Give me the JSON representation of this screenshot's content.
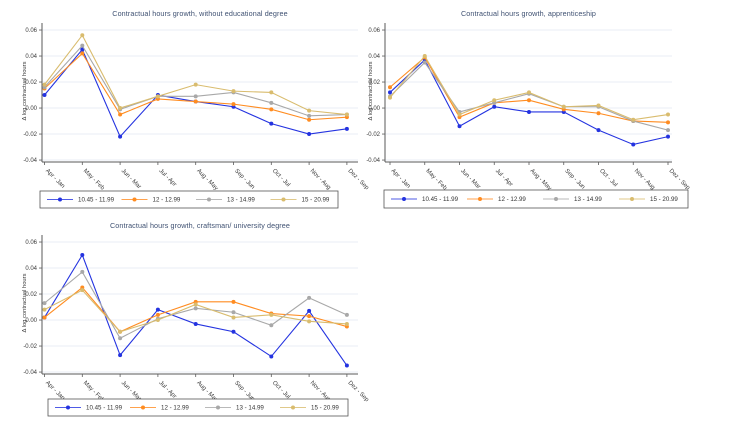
{
  "figure": {
    "background": "#ffffff"
  },
  "colors": {
    "grid": "#e8eef5",
    "axis": "#5a5a5a",
    "title": "#3f5172",
    "tick_label": "#3a3a3a",
    "legend_border": "#555555",
    "legend_background": "#ffffff"
  },
  "chart_data": [
    {
      "type": "line",
      "title": "Contractual hours growth, without educational degree",
      "ylabel": "Δ log contractual hours",
      "xlabel": "",
      "grid": true,
      "legend_position": "bottom",
      "ylim": [
        -0.0415,
        0.0654
      ],
      "yticks": [
        "0.06",
        "0.04",
        "0.02",
        "0.00",
        "-0.02",
        "-0.04"
      ],
      "categories": [
        "Apr - Jan",
        "May - Feb",
        "Jun - Mar",
        "Jul - Apr",
        "Aug - May",
        "Sep - Jun",
        "Oct - Jul",
        "Nov - Aug",
        "Dez - Sep"
      ],
      "series": [
        {
          "name": "10.45 - 11.99",
          "color": "#2433e0",
          "values": [
            0.01,
            0.045,
            -0.022,
            0.01,
            0.005,
            0.001,
            -0.012,
            -0.02,
            -0.016
          ]
        },
        {
          "name": "12 - 12.99",
          "color": "#ff8c21",
          "values": [
            0.015,
            0.042,
            -0.005,
            0.007,
            0.005,
            0.003,
            -0.001,
            -0.009,
            -0.007
          ]
        },
        {
          "name": "13 - 14.99",
          "color": "#a8a8a8",
          "values": [
            0.016,
            0.048,
            -0.001,
            0.009,
            0.009,
            0.012,
            0.004,
            -0.006,
            -0.005
          ]
        },
        {
          "name": "15 - 20.99",
          "color": "#d9bc6e",
          "values": [
            0.018,
            0.056,
            0.0,
            0.009,
            0.018,
            0.013,
            0.012,
            -0.002,
            -0.005
          ]
        }
      ]
    },
    {
      "type": "line",
      "title": "Contractual hours growth, apprenticeship",
      "ylabel": "Δ log contractual hours",
      "xlabel": "",
      "grid": true,
      "legend_position": "bottom",
      "ylim": [
        -0.0415,
        0.0654
      ],
      "yticks": [
        "0.06",
        "0.04",
        "0.02",
        "0.00",
        "-0.02",
        "-0.04"
      ],
      "categories": [
        "Apr - Jan",
        "May - Feb",
        "Jun - Mar",
        "Jul - Apr",
        "Aug - May",
        "Sep - Jun",
        "Oct - Jul",
        "Nov - Aug",
        "Dez - Sep"
      ],
      "series": [
        {
          "name": "10.45 - 11.99",
          "color": "#2433e0",
          "values": [
            0.012,
            0.037,
            -0.014,
            0.001,
            -0.003,
            -0.003,
            -0.017,
            -0.028,
            -0.022
          ]
        },
        {
          "name": "12 - 12.99",
          "color": "#ff8c21",
          "values": [
            0.016,
            0.039,
            -0.007,
            0.004,
            0.006,
            -0.001,
            -0.004,
            -0.01,
            -0.011
          ]
        },
        {
          "name": "13 - 14.99",
          "color": "#a8a8a8",
          "values": [
            0.009,
            0.035,
            -0.003,
            0.004,
            0.011,
            0.001,
            0.001,
            -0.01,
            -0.017
          ]
        },
        {
          "name": "15 - 20.99",
          "color": "#d9bc6e",
          "values": [
            0.008,
            0.04,
            -0.005,
            0.006,
            0.012,
            0.001,
            0.002,
            -0.009,
            -0.005
          ]
        }
      ]
    },
    {
      "type": "line",
      "title": "Contractual hours growth, craftsman/ university degree",
      "ylabel": "Δ log contractual hours",
      "xlabel": "",
      "grid": true,
      "legend_position": "bottom",
      "ylim": [
        -0.0415,
        0.0654
      ],
      "yticks": [
        "0.06",
        "0.04",
        "0.02",
        "0.00",
        "-0.02",
        "-0.04"
      ],
      "categories": [
        "Apr - Jan",
        "May - Feb",
        "Jun - Mar",
        "Jul - Apr",
        "Aug - May",
        "Sep - Jun",
        "Oct - Jul",
        "Nov - Aug",
        "Dez - Sep"
      ],
      "series": [
        {
          "name": "10.45 - 11.99",
          "color": "#2433e0",
          "values": [
            0.002,
            0.05,
            -0.027,
            0.008,
            -0.003,
            -0.009,
            -0.028,
            0.007,
            -0.035
          ]
        },
        {
          "name": "12 - 12.99",
          "color": "#ff8c21",
          "values": [
            0.002,
            0.025,
            -0.009,
            0.004,
            0.014,
            0.014,
            0.005,
            0.003,
            -0.005
          ]
        },
        {
          "name": "13 - 14.99",
          "color": "#a8a8a8",
          "values": [
            0.013,
            0.037,
            -0.014,
            0.001,
            0.009,
            0.006,
            -0.004,
            0.017,
            0.004
          ]
        },
        {
          "name": "15 - 20.99",
          "color": "#d9bc6e",
          "values": [
            0.008,
            0.023,
            -0.009,
            0.0,
            0.012,
            0.002,
            0.004,
            -0.001,
            -0.003
          ]
        }
      ]
    }
  ]
}
